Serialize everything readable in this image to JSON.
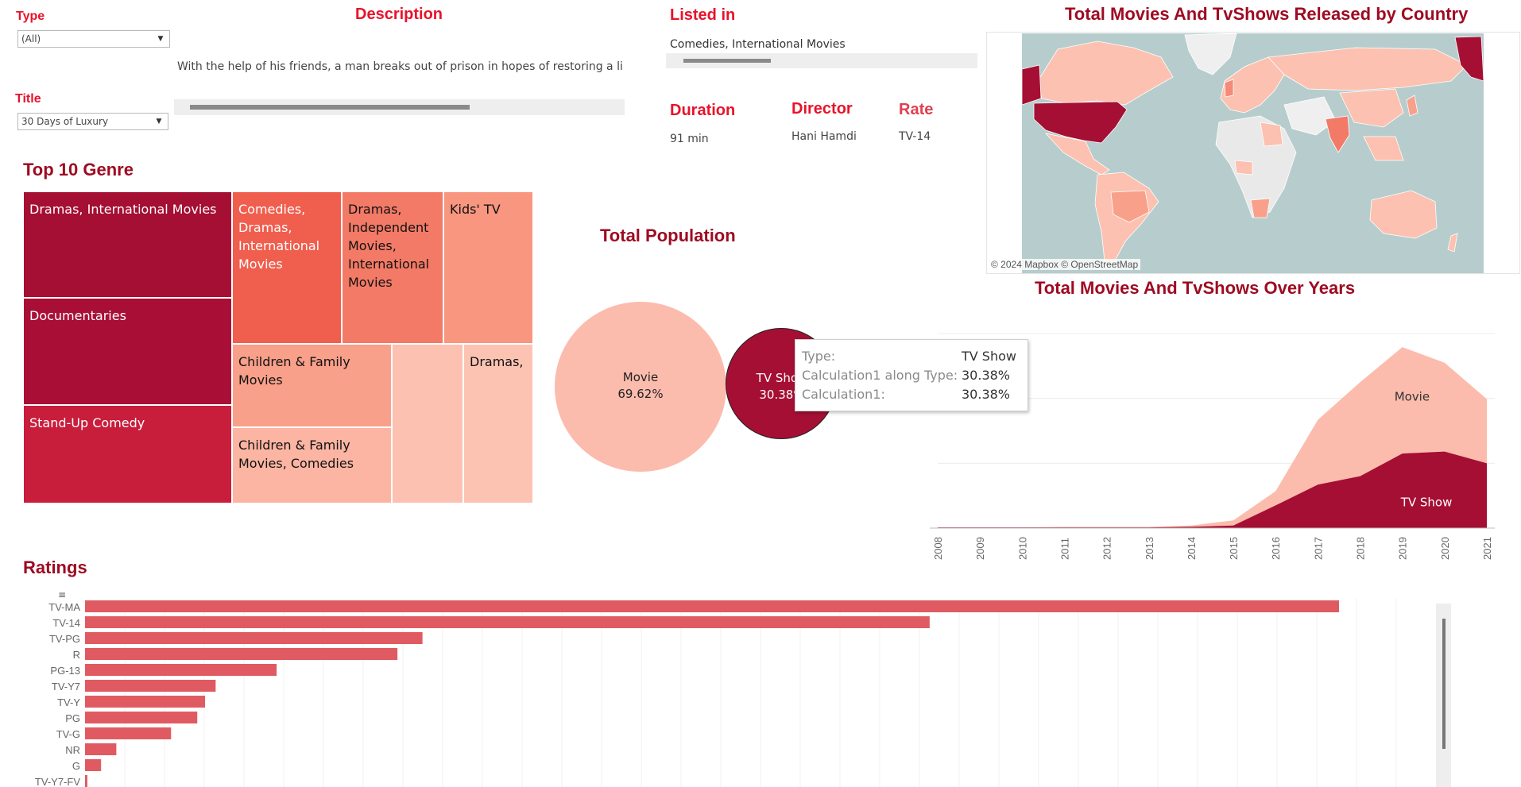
{
  "filters": {
    "type_label": "Type",
    "type_value": "(All)",
    "title_label": "Title",
    "title_value": "30 Days of Luxury"
  },
  "details": {
    "description_heading": "Description",
    "description_text": "With the help of his friends, a man breaks out of prison in hopes of restoring a li",
    "listed_in_heading": "Listed in",
    "listed_in_text": "Comedies, International Movies",
    "duration_heading": "Duration",
    "duration_value": "91 min",
    "director_heading": "Director",
    "director_value": "Hani Hamdi",
    "rate_heading": "Rate",
    "rate_value": "TV-14"
  },
  "map": {
    "title": "Total Movies And TvShows Released by Country",
    "attribution": "© 2024 Mapbox © OpenStreetMap"
  },
  "genre": {
    "title": "Top 10 Genre",
    "cells": [
      {
        "label": "Dramas, International Movies",
        "color": "#a50f34"
      },
      {
        "label": "Documentaries",
        "color": "#a90f36"
      },
      {
        "label": "Stand-Up Comedy",
        "color": "#c91d3c"
      },
      {
        "label": "Comedies, Dramas, International Movies",
        "color": "#f05e4e"
      },
      {
        "label": "Dramas, Independent Movies, International Movies",
        "color": "#f37a66"
      },
      {
        "label": "Kids' TV",
        "color": "#f8967f"
      },
      {
        "label": "Children & Family Movies",
        "color": "#f9a08a"
      },
      {
        "label": "Children & Family Movies, Comedies",
        "color": "#fbb5a2"
      },
      {
        "label": "",
        "color": "#fcc1b0"
      },
      {
        "label": "Dramas,",
        "color": "#fcc3b3"
      }
    ]
  },
  "population": {
    "title": "Total Population",
    "movie_label": "Movie",
    "movie_pct": "69.62%",
    "tv_label": "TV Show",
    "tv_pct": "30.38%",
    "movie_color": "#fcbcad",
    "tv_color": "#a50f34"
  },
  "tooltip": {
    "rows": [
      {
        "k": "Type:",
        "v": "TV Show"
      },
      {
        "k": "Calculation1 along Type:",
        "v": "30.38%"
      },
      {
        "k": "Calculation1:",
        "v": "30.38%"
      }
    ]
  },
  "years_chart": {
    "title": "Total Movies And TvShows Over Years",
    "movie_label": "Movie",
    "tv_label": "TV Show"
  },
  "ratings": {
    "title": "Ratings"
  },
  "chart_data": [
    {
      "type": "area",
      "title": "Total Movies And TvShows Over Years",
      "x": [
        "2008",
        "2009",
        "2010",
        "2011",
        "2012",
        "2013",
        "2014",
        "2015",
        "2016",
        "2017",
        "2018",
        "2019",
        "2020",
        "2021"
      ],
      "series": [
        {
          "name": "TV Show",
          "values": [
            1,
            1,
            1,
            1,
            1,
            1,
            2,
            4,
            35,
            67,
            80,
            115,
            118,
            100
          ],
          "color": "#a50f34"
        },
        {
          "name": "Movie",
          "values": [
            1,
            1,
            1,
            2,
            2,
            2,
            4,
            12,
            57,
            167,
            225,
            279,
            255,
            199
          ],
          "color": "#fcbcad"
        }
      ],
      "stacked": true,
      "grid": true
    },
    {
      "type": "bar",
      "title": "Ratings",
      "orientation": "horizontal",
      "categories": [
        "TV-MA",
        "TV-14",
        "TV-PG",
        "R",
        "PG-13",
        "TV-Y7",
        "TV-Y",
        "PG",
        "TV-G",
        "NR",
        "G",
        "TV-Y7-FV"
      ],
      "values": [
        3207,
        2160,
        863,
        799,
        490,
        334,
        307,
        287,
        220,
        80,
        41,
        6
      ],
      "xlim": [
        0,
        3400
      ],
      "color": "#e05b61"
    }
  ]
}
